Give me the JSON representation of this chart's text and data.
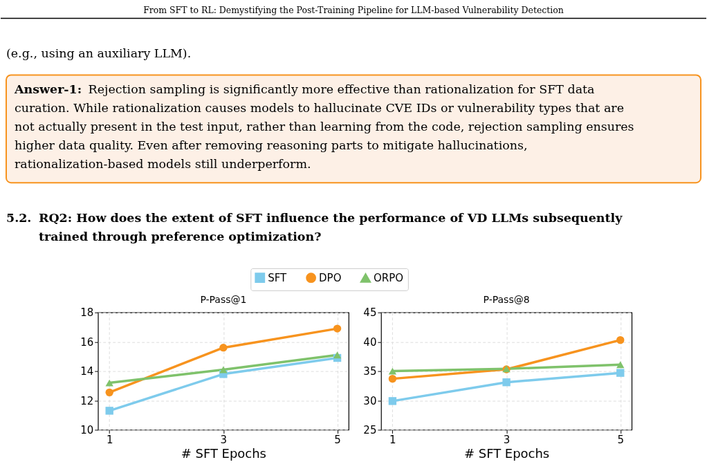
{
  "chart_data": [
    {
      "type": "other",
      "annotations": [
        "From SFT to RL: Demystifying the Post-Training Pipeline for LLM-based Vulnerability Detection",
        "(e.g., using an auxiliary LLM).",
        "Answer-1:",
        "Rejection sampling is significantly more effective than rationalization for SFT data curation. While rationalization causes models to hallucinate CVE IDs or vulnerability types that are not actually present in the test input, rather than learning from the code, rejection sampling ensures higher data quality. Even after removing reasoning parts to mitigate hallucinations, rationalization-based models still underperform.",
        "5.2.",
        "RQ2: How does the extent of SFT influence the performance of VD LLMs subsequently trained through preference optimization?"
      ]
    },
    {
      "type": "line",
      "title": "P-Pass@1",
      "xlabel": "# SFT Epochs",
      "x": [
        1,
        3,
        5
      ],
      "xlim": [
        0.8,
        5.2
      ],
      "xticks": [
        1,
        3,
        5
      ],
      "ylim": [
        10,
        18
      ],
      "yticks": [
        10,
        12,
        14,
        16,
        18
      ],
      "grid": true,
      "legend": "top",
      "line_style": "solid",
      "series": [
        {
          "name": "SFT",
          "color": "#7ecbec",
          "marker": "square",
          "values": [
            11.3,
            13.8,
            14.9
          ]
        },
        {
          "name": "DPO",
          "color": "#f7931e",
          "marker": "circle",
          "values": [
            12.55,
            15.6,
            16.9
          ]
        },
        {
          "name": "ORPO",
          "color": "#7fc26b",
          "marker": "triangle",
          "values": [
            13.2,
            14.1,
            15.1
          ]
        }
      ]
    },
    {
      "type": "line",
      "title": "P-Pass@8",
      "xlabel": "# SFT Epochs",
      "x": [
        1,
        3,
        5
      ],
      "xlim": [
        0.8,
        5.2
      ],
      "xticks": [
        1,
        3,
        5
      ],
      "ylim": [
        25,
        45
      ],
      "yticks": [
        25,
        30,
        35,
        40,
        45
      ],
      "grid": true,
      "line_style": "solid",
      "series": [
        {
          "name": "SFT",
          "color": "#7ecbec",
          "marker": "square",
          "values": [
            29.9,
            33.1,
            34.7
          ]
        },
        {
          "name": "DPO",
          "color": "#f7931e",
          "marker": "circle",
          "values": [
            33.7,
            35.3,
            40.3
          ]
        },
        {
          "name": "ORPO",
          "color": "#7fc26b",
          "marker": "triangle",
          "values": [
            35.0,
            35.4,
            36.1
          ]
        }
      ]
    }
  ]
}
